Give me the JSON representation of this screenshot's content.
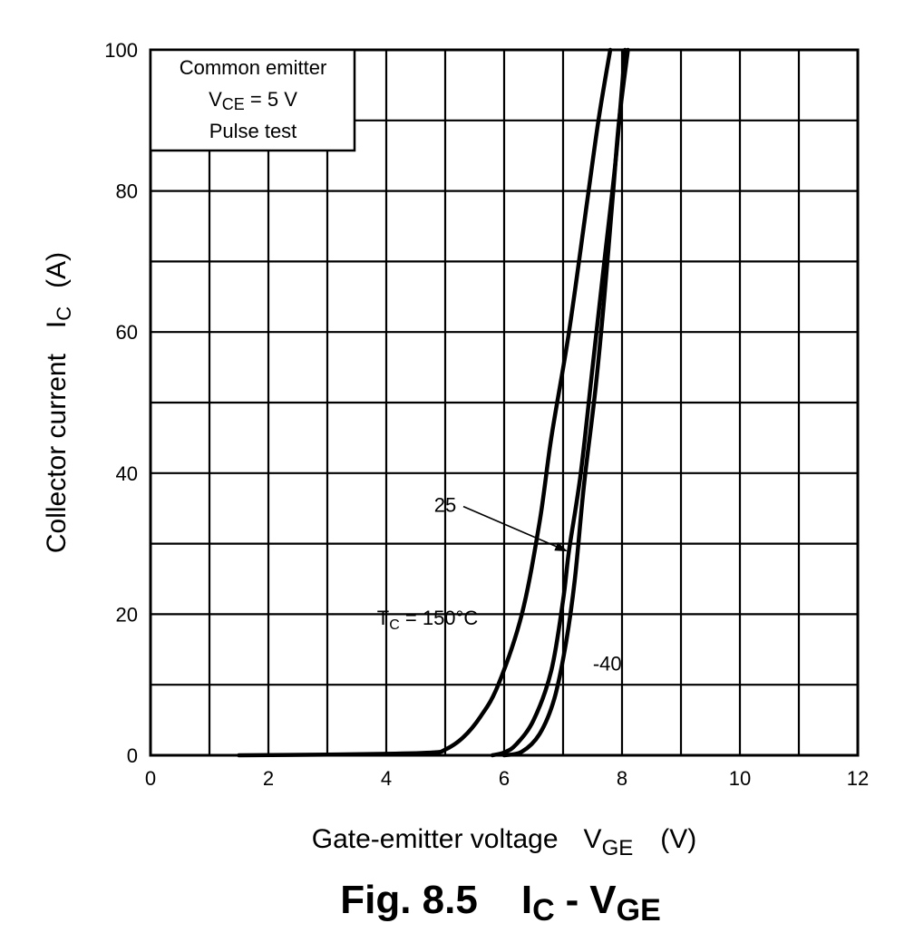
{
  "figure": {
    "caption_prefix": "Fig. 8.5",
    "caption_lhs_main": "I",
    "caption_lhs_sub": "C",
    "caption_dash": "-",
    "caption_rhs_main": "V",
    "caption_rhs_sub": "GE"
  },
  "chart_data": {
    "type": "line",
    "xlabel": {
      "text": "Gate-emitter voltage",
      "symbol": "V",
      "symbol_sub": "GE",
      "unit": "(V)"
    },
    "ylabel": {
      "text": "Collector current",
      "symbol": "I",
      "symbol_sub": "C",
      "unit": "(A)"
    },
    "xlim": [
      0,
      12
    ],
    "ylim": [
      0,
      100
    ],
    "x_ticks": [
      0,
      2,
      4,
      6,
      8,
      10,
      12
    ],
    "y_ticks": [
      0,
      20,
      40,
      60,
      80,
      100
    ],
    "x_grid_step": 1,
    "y_grid_step": 10,
    "grid": true,
    "legend_box": {
      "placement": "top-left",
      "line1": "Common emitter",
      "line2_symbol": "V",
      "line2_sub": "CE",
      "line2_rest": " = 5 V",
      "line3": "Pulse test"
    },
    "series": [
      {
        "name": "150",
        "points": [
          [
            1.5,
            0
          ],
          [
            3.0,
            0.1
          ],
          [
            4.0,
            0.2
          ],
          [
            4.8,
            0.4
          ],
          [
            5.0,
            0.8
          ],
          [
            5.3,
            2.5
          ],
          [
            5.6,
            5.5
          ],
          [
            5.9,
            10
          ],
          [
            6.3,
            20
          ],
          [
            6.6,
            33
          ],
          [
            6.8,
            45
          ],
          [
            7.1,
            60
          ],
          [
            7.4,
            78
          ],
          [
            7.6,
            90
          ],
          [
            7.8,
            100
          ]
        ]
      },
      {
        "name": "25",
        "points": [
          [
            5.8,
            0
          ],
          [
            6.0,
            0.4
          ],
          [
            6.2,
            1.5
          ],
          [
            6.5,
            5
          ],
          [
            6.8,
            12
          ],
          [
            7.0,
            22
          ],
          [
            7.1,
            29
          ],
          [
            7.3,
            40
          ],
          [
            7.5,
            55
          ],
          [
            7.7,
            70
          ],
          [
            7.9,
            85
          ],
          [
            8.05,
            100
          ]
        ]
      },
      {
        "name": "-40",
        "points": [
          [
            6.0,
            0
          ],
          [
            6.3,
            0.5
          ],
          [
            6.6,
            3
          ],
          [
            6.85,
            8
          ],
          [
            7.05,
            16
          ],
          [
            7.2,
            25
          ],
          [
            7.35,
            38
          ],
          [
            7.55,
            52
          ],
          [
            7.7,
            65
          ],
          [
            7.85,
            80
          ],
          [
            7.95,
            90
          ],
          [
            8.1,
            100
          ]
        ]
      }
    ],
    "annotations": [
      {
        "id": "label-150",
        "pre": "T",
        "sub": "C",
        "post": " = 150°C",
        "at": [
          4.7,
          18.5
        ]
      },
      {
        "id": "label-25",
        "text": "25",
        "at": [
          5.0,
          34.5
        ],
        "arrow_to": [
          7.05,
          29
        ]
      },
      {
        "id": "label-40",
        "text": "-40",
        "at": [
          7.75,
          12
        ]
      }
    ]
  }
}
